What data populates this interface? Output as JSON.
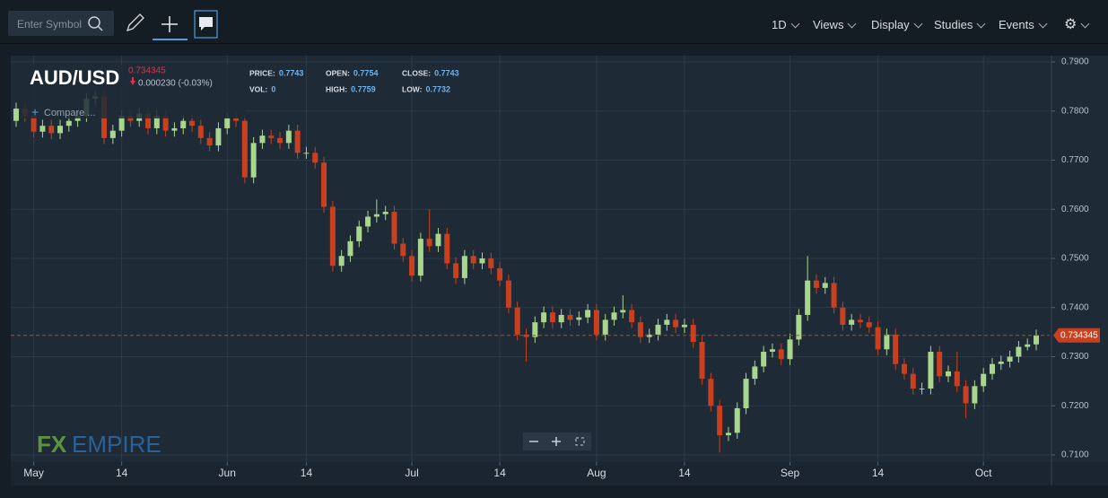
{
  "toolbar": {
    "search_placeholder": "Enter Symbol",
    "menus": [
      "1D",
      "Views",
      "Display",
      "Studies",
      "Events"
    ]
  },
  "chart_data": {
    "type": "candlestick",
    "title": "AUD/USD",
    "change": "0.000230 (-0.03%)",
    "compare": "Compare ...",
    "watermark": [
      "FX",
      "EMPIRE"
    ],
    "ohlc_legend": [
      {
        "label": "PRICE:",
        "value": 0.7743
      },
      {
        "label": "OPEN:",
        "value": 0.7754
      },
      {
        "label": "CLOSE:",
        "value": 0.7743
      },
      {
        "label": "VOL:",
        "value": 0
      },
      {
        "label": "HIGH:",
        "value": 0.7759
      },
      {
        "label": "LOW:",
        "value": 0.7732
      }
    ],
    "categories": [
      null,
      null,
      "May",
      null,
      null,
      null,
      null,
      null,
      null,
      null,
      null,
      null,
      "14",
      null,
      null,
      null,
      null,
      null,
      null,
      null,
      null,
      null,
      null,
      null,
      "Jun",
      null,
      null,
      null,
      null,
      null,
      null,
      null,
      null,
      "14",
      null,
      null,
      null,
      null,
      null,
      null,
      null,
      null,
      null,
      null,
      null,
      "Jul",
      null,
      null,
      null,
      null,
      null,
      null,
      null,
      null,
      null,
      "14",
      null,
      null,
      null,
      null,
      null,
      null,
      null,
      null,
      null,
      null,
      "Aug",
      null,
      null,
      null,
      null,
      null,
      null,
      null,
      null,
      null,
      "14",
      null,
      null,
      null,
      null,
      null,
      null,
      null,
      null,
      null,
      null,
      null,
      "Sep",
      null,
      null,
      null,
      null,
      null,
      null,
      null,
      null,
      null,
      "14",
      null,
      null,
      null,
      null,
      null,
      null,
      null,
      null,
      null,
      null,
      null,
      "Oct",
      null,
      null,
      null,
      null,
      null,
      null
    ],
    "open": [
      0.778,
      0.7805,
      0.779,
      0.7758,
      0.777,
      0.7755,
      0.777,
      0.778,
      0.779,
      0.7825,
      0.783,
      0.7745,
      0.776,
      0.779,
      0.778,
      0.7795,
      0.7765,
      0.779,
      0.776,
      0.7765,
      0.778,
      0.777,
      0.7745,
      0.773,
      0.7765,
      0.7785,
      0.778,
      0.7665,
      0.7735,
      0.775,
      0.7745,
      0.7735,
      0.776,
      0.7715,
      0.7715,
      0.7695,
      0.7605,
      0.7485,
      0.7505,
      0.7535,
      0.7565,
      0.7585,
      0.759,
      0.7595,
      0.753,
      0.7505,
      0.7465,
      0.754,
      0.7525,
      0.755,
      0.749,
      0.746,
      0.7505,
      0.749,
      0.75,
      0.748,
      0.7455,
      0.74,
      0.7345,
      0.734,
      0.737,
      0.739,
      0.737,
      0.7385,
      0.7375,
      0.738,
      0.7395,
      0.7345,
      0.7375,
      0.739,
      0.7395,
      0.737,
      0.734,
      0.7345,
      0.7365,
      0.7375,
      0.736,
      0.7365,
      0.733,
      0.7255,
      0.72,
      0.714,
      0.7145,
      0.7195,
      0.7255,
      0.728,
      0.731,
      0.7315,
      0.7295,
      0.7335,
      0.7385,
      0.7455,
      0.744,
      0.745,
      0.74,
      0.7365,
      0.7375,
      0.737,
      0.736,
      0.7315,
      0.7345,
      0.7285,
      0.7265,
      0.7235,
      0.7235,
      0.731,
      0.726,
      0.727,
      0.724,
      0.7205,
      0.724,
      0.7265,
      0.7285,
      0.729,
      0.73,
      0.732,
      0.7325
    ],
    "high": [
      0.7817,
      0.7817,
      0.7802,
      0.7782,
      0.7782,
      0.7782,
      0.7792,
      0.7802,
      0.7837,
      0.7842,
      0.7842,
      0.7772,
      0.7802,
      0.7802,
      0.7807,
      0.7807,
      0.7802,
      0.7802,
      0.7777,
      0.7792,
      0.7792,
      0.7782,
      0.7757,
      0.7777,
      0.7797,
      0.7797,
      0.7792,
      0.7747,
      0.7762,
      0.7762,
      0.7757,
      0.7772,
      0.7772,
      0.7727,
      0.7727,
      0.7707,
      0.7617,
      0.7517,
      0.7547,
      0.7577,
      0.7597,
      0.762,
      0.7607,
      0.7607,
      0.7542,
      0.7517,
      0.7552,
      0.76,
      0.7562,
      0.7562,
      0.7502,
      0.7517,
      0.7517,
      0.7512,
      0.7512,
      0.7492,
      0.7467,
      0.7412,
      0.7357,
      0.7382,
      0.7402,
      0.7402,
      0.7397,
      0.7397,
      0.7392,
      0.7407,
      0.7407,
      0.7387,
      0.7402,
      0.7425,
      0.7407,
      0.7382,
      0.7357,
      0.7377,
      0.7387,
      0.7387,
      0.7377,
      0.7377,
      0.7342,
      0.7267,
      0.7212,
      0.7157,
      0.7207,
      0.7267,
      0.7292,
      0.7322,
      0.7327,
      0.7327,
      0.7347,
      0.7397,
      0.7505,
      0.7467,
      0.7462,
      0.7462,
      0.7412,
      0.7387,
      0.7387,
      0.7382,
      0.7372,
      0.7357,
      0.7357,
      0.7297,
      0.7277,
      0.7247,
      0.7322,
      0.7322,
      0.7282,
      0.731,
      0.7252,
      0.7252,
      0.7277,
      0.7297,
      0.7302,
      0.7312,
      0.7332,
      0.7337,
      0.7355
    ],
    "low": [
      0.7768,
      0.7778,
      0.7746,
      0.7746,
      0.7743,
      0.7743,
      0.7758,
      0.7768,
      0.7778,
      0.7813,
      0.7733,
      0.7733,
      0.7748,
      0.7768,
      0.7768,
      0.7753,
      0.7753,
      0.7748,
      0.7748,
      0.7753,
      0.7758,
      0.7733,
      0.7718,
      0.7718,
      0.7753,
      0.7768,
      0.7653,
      0.7653,
      0.7723,
      0.7733,
      0.7723,
      0.7723,
      0.7703,
      0.7703,
      0.7683,
      0.7593,
      0.7473,
      0.7473,
      0.7493,
      0.7523,
      0.7553,
      0.7573,
      0.7578,
      0.7518,
      0.7493,
      0.7453,
      0.7453,
      0.7513,
      0.7513,
      0.7478,
      0.7448,
      0.7448,
      0.7478,
      0.7478,
      0.7468,
      0.7443,
      0.7388,
      0.7333,
      0.729,
      0.7328,
      0.7358,
      0.7358,
      0.7358,
      0.7363,
      0.7363,
      0.7368,
      0.7333,
      0.7333,
      0.7363,
      0.7378,
      0.7358,
      0.7328,
      0.7328,
      0.7333,
      0.7353,
      0.7348,
      0.7348,
      0.7318,
      0.7243,
      0.7188,
      0.7105,
      0.7128,
      0.7133,
      0.7183,
      0.7243,
      0.7268,
      0.7298,
      0.7283,
      0.7283,
      0.7323,
      0.7373,
      0.7428,
      0.7428,
      0.7388,
      0.7353,
      0.7353,
      0.7358,
      0.7348,
      0.7303,
      0.7303,
      0.7273,
      0.7253,
      0.7223,
      0.7223,
      0.7223,
      0.7248,
      0.7248,
      0.7228,
      0.7175,
      0.7193,
      0.7228,
      0.7253,
      0.7273,
      0.7278,
      0.7288,
      0.7313,
      0.7313
    ],
    "close": [
      0.7805,
      0.779,
      0.7758,
      0.777,
      0.7755,
      0.777,
      0.778,
      0.779,
      0.7825,
      0.783,
      0.7745,
      0.776,
      0.779,
      0.778,
      0.7795,
      0.7765,
      0.779,
      0.776,
      0.7765,
      0.778,
      0.777,
      0.7745,
      0.773,
      0.7765,
      0.7785,
      0.778,
      0.7665,
      0.7735,
      0.775,
      0.7745,
      0.7735,
      0.776,
      0.7715,
      0.7715,
      0.7695,
      0.7605,
      0.7485,
      0.7505,
      0.7535,
      0.7565,
      0.7585,
      0.759,
      0.7595,
      0.753,
      0.7505,
      0.7465,
      0.754,
      0.7525,
      0.755,
      0.749,
      0.746,
      0.7505,
      0.749,
      0.75,
      0.748,
      0.7455,
      0.74,
      0.7345,
      0.734,
      0.737,
      0.739,
      0.737,
      0.7385,
      0.7375,
      0.738,
      0.7395,
      0.7345,
      0.7375,
      0.739,
      0.7395,
      0.737,
      0.734,
      0.7345,
      0.7365,
      0.7375,
      0.736,
      0.7365,
      0.733,
      0.7255,
      0.72,
      0.714,
      0.7145,
      0.7195,
      0.7255,
      0.728,
      0.731,
      0.7315,
      0.7295,
      0.7335,
      0.7385,
      0.7455,
      0.744,
      0.745,
      0.74,
      0.7365,
      0.7375,
      0.737,
      0.736,
      0.7315,
      0.7345,
      0.7285,
      0.7265,
      0.7235,
      0.7235,
      0.731,
      0.726,
      0.727,
      0.724,
      0.7205,
      0.724,
      0.7265,
      0.7285,
      0.729,
      0.73,
      0.732,
      0.7325,
      0.734345
    ],
    "last_price": 0.734345,
    "up_color": "#a9d68f",
    "down_color": "#c8401f",
    "ylim": [
      0.7089,
      0.7911
    ],
    "yticks": [
      {
        "value": 0.71,
        "label": "0.7100"
      },
      {
        "value": 0.72,
        "label": "0.7200"
      },
      {
        "value": 0.73,
        "label": "0.7300"
      },
      {
        "value": 0.74,
        "label": "0.7400"
      },
      {
        "value": 0.75,
        "label": "0.7500"
      },
      {
        "value": 0.76,
        "label": "0.7600"
      },
      {
        "value": 0.77,
        "label": "0.7700"
      },
      {
        "value": 0.78,
        "label": "0.7800"
      },
      {
        "value": 0.79,
        "label": "0.7900"
      }
    ],
    "grid": true
  }
}
